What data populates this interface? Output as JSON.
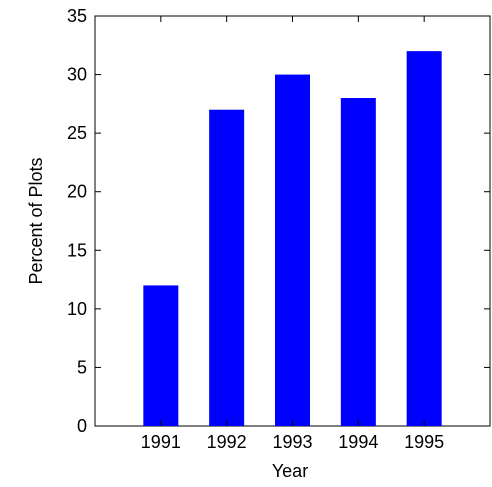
{
  "chart_data": {
    "type": "bar",
    "title": "",
    "xlabel": "Year",
    "ylabel": "Percent of Plots",
    "categories": [
      "1991",
      "1992",
      "1993",
      "1994",
      "1995"
    ],
    "values": [
      12,
      27,
      30,
      28,
      32
    ],
    "ylim": [
      0,
      35
    ],
    "yticks": [
      0,
      5,
      10,
      15,
      20,
      25,
      30,
      35
    ],
    "grid": false,
    "legend": "none",
    "bar_color": "#0000ff",
    "axis_color": "#000000"
  }
}
